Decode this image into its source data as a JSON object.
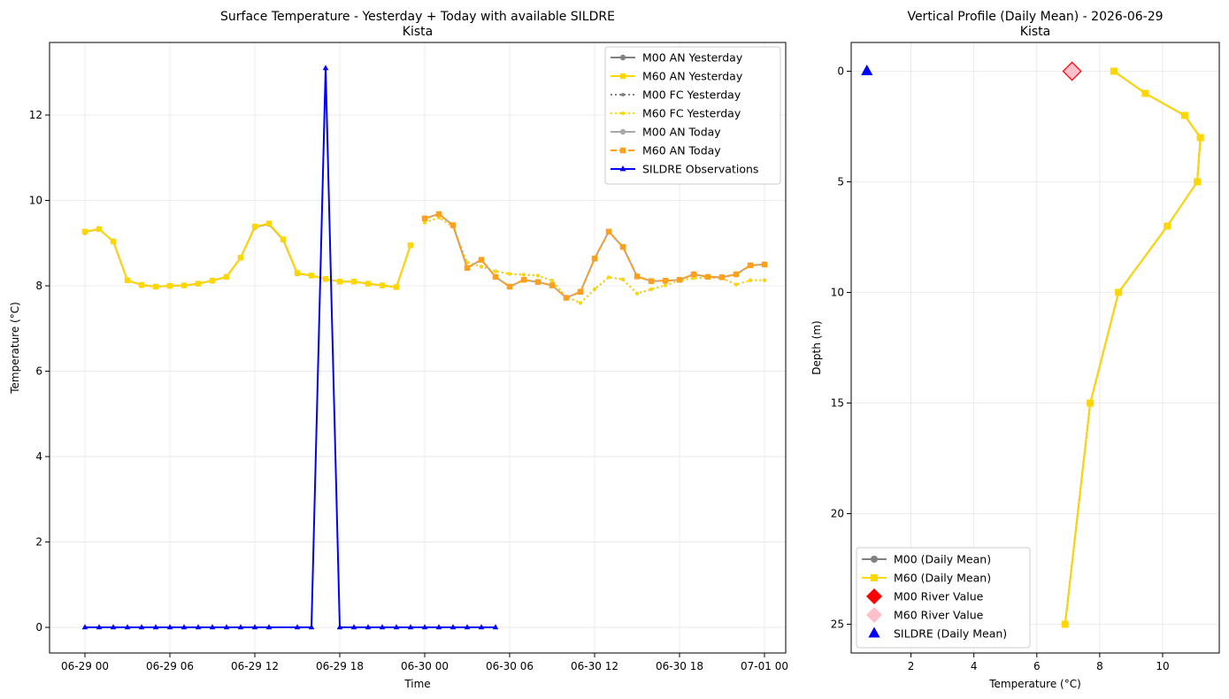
{
  "chart_data": [
    {
      "type": "line",
      "title": "Surface Temperature - Yesterday + Today with available SILDRE",
      "subtitle": "Kista",
      "xlabel": "Time",
      "ylabel": "Temperature (°C)",
      "x_unit": "hours since 06-29 00",
      "xlim": [
        -2.5,
        49.5
      ],
      "ylim": [
        -0.6,
        13.7
      ],
      "x_ticks": [
        0,
        6,
        12,
        18,
        24,
        30,
        36,
        42,
        48
      ],
      "x_tick_labels": [
        "06-29 00",
        "06-29 06",
        "06-29 12",
        "06-29 18",
        "06-30 00",
        "06-30 06",
        "06-30 12",
        "06-30 18",
        "07-01 00"
      ],
      "y_ticks": [
        0,
        2,
        4,
        6,
        8,
        10,
        12
      ],
      "y_tick_labels": [
        "0",
        "2",
        "4",
        "6",
        "8",
        "10",
        "12"
      ],
      "grid": true,
      "legend_position": "upper right",
      "series": [
        {
          "name": "M00 AN Yesterday",
          "color": "#808080",
          "dash": "solid",
          "marker": "circle",
          "x": [
            0,
            1,
            2,
            3,
            4,
            5,
            6,
            7,
            8,
            9,
            10,
            11,
            12,
            13,
            14,
            15,
            16,
            17,
            18,
            19,
            20,
            21,
            22,
            23
          ],
          "y": [
            9.26,
            9.33,
            9.04,
            8.13,
            8.02,
            7.98,
            8.0,
            8.01,
            8.05,
            8.12,
            8.21,
            8.66,
            9.38,
            9.45,
            9.08,
            8.29,
            8.24,
            8.16,
            8.1,
            8.1,
            8.05,
            8.01,
            7.97,
            8.95
          ]
        },
        {
          "name": "M60 AN Yesterday",
          "color": "#FFD700",
          "dash": "solid",
          "marker": "square",
          "x": [
            0,
            1,
            2,
            3,
            4,
            5,
            6,
            7,
            8,
            9,
            10,
            11,
            12,
            13,
            14,
            15,
            16,
            17,
            18,
            19,
            20,
            21,
            22,
            23
          ],
          "y": [
            9.27,
            9.33,
            9.04,
            8.13,
            8.02,
            7.98,
            8.0,
            8.01,
            8.05,
            8.12,
            8.21,
            8.66,
            9.39,
            9.46,
            9.09,
            8.3,
            8.24,
            8.16,
            8.1,
            8.1,
            8.05,
            8.01,
            7.97,
            8.95
          ]
        },
        {
          "name": "M00 FC Yesterday",
          "color": "#808080",
          "dash": "dot",
          "marker": "circle",
          "x": [
            24,
            25,
            26,
            27,
            28,
            29,
            30,
            31,
            32,
            33,
            34,
            35,
            36,
            37,
            38,
            39,
            40,
            41,
            42,
            43,
            44,
            45,
            46,
            47,
            48
          ],
          "y": [
            9.48,
            9.6,
            9.38,
            8.55,
            8.45,
            8.34,
            8.28,
            8.26,
            8.24,
            8.12,
            7.74,
            7.6,
            7.92,
            8.2,
            8.15,
            7.82,
            7.92,
            8.01,
            8.12,
            8.18,
            8.19,
            8.18,
            8.03,
            8.13,
            8.13
          ]
        },
        {
          "name": "M60 FC Yesterday",
          "color": "#FFD700",
          "dash": "dot",
          "marker": "circle",
          "x": [
            24,
            25,
            26,
            27,
            28,
            29,
            30,
            31,
            32,
            33,
            34,
            35,
            36,
            37,
            38,
            39,
            40,
            41,
            42,
            43,
            44,
            45,
            46,
            47,
            48
          ],
          "y": [
            9.48,
            9.6,
            9.38,
            8.55,
            8.45,
            8.34,
            8.28,
            8.26,
            8.24,
            8.12,
            7.74,
            7.6,
            7.92,
            8.2,
            8.15,
            7.82,
            7.92,
            8.01,
            8.12,
            8.18,
            8.19,
            8.18,
            8.03,
            8.13,
            8.13
          ]
        },
        {
          "name": "M00 AN Today",
          "color": "#A9A9A9",
          "dash": "solid",
          "marker": "circle",
          "x": [
            24,
            25,
            26,
            27,
            28,
            29,
            30,
            31,
            32,
            33,
            34,
            35,
            36,
            37,
            38,
            39,
            40,
            41,
            42,
            43,
            44,
            45,
            46,
            47,
            48
          ],
          "y": [
            9.58,
            9.68,
            9.42,
            8.42,
            8.61,
            8.21,
            7.98,
            8.14,
            8.09,
            8.01,
            7.72,
            7.86,
            8.64,
            9.27,
            8.91,
            8.22,
            8.11,
            8.12,
            8.14,
            8.27,
            8.21,
            8.2,
            8.27,
            8.48,
            8.5
          ]
        },
        {
          "name": "M60 AN Today",
          "color": "#FF9F1A",
          "dash": "dash",
          "marker": "square",
          "x": [
            24,
            25,
            26,
            27,
            28,
            29,
            30,
            31,
            32,
            33,
            34,
            35,
            36,
            37,
            38,
            39,
            40,
            41,
            42,
            43,
            44,
            45,
            46,
            47,
            48
          ],
          "y": [
            9.58,
            9.68,
            9.42,
            8.42,
            8.61,
            8.21,
            7.98,
            8.14,
            8.09,
            8.01,
            7.72,
            7.86,
            8.64,
            9.27,
            8.91,
            8.22,
            8.11,
            8.12,
            8.14,
            8.27,
            8.21,
            8.2,
            8.27,
            8.48,
            8.5
          ]
        },
        {
          "name": "SILDRE Observations",
          "color": "#0000FF",
          "dash": "solid",
          "marker": "triangle",
          "x": [
            0,
            1,
            2,
            3,
            4,
            5,
            6,
            7,
            8,
            9,
            10,
            11,
            12,
            13,
            15,
            16,
            17,
            18,
            19,
            20,
            21,
            22,
            23,
            24,
            25,
            26,
            27,
            28,
            29
          ],
          "y": [
            0,
            0,
            0,
            0,
            0,
            0,
            0,
            0,
            0,
            0,
            0,
            0,
            0,
            0,
            0,
            0,
            13.1,
            0,
            0,
            0,
            0,
            0,
            0,
            0,
            0,
            0,
            0,
            0,
            0
          ]
        }
      ]
    },
    {
      "type": "line",
      "title": "Vertical Profile (Daily Mean) - 2026-06-29",
      "subtitle": "Kista",
      "xlabel": "Temperature (°C)",
      "ylabel": "Depth (m)",
      "xlim": [
        0.1,
        11.8
      ],
      "ylim": [
        26.3,
        -1.3
      ],
      "y_inverted": true,
      "x_ticks": [
        2,
        4,
        6,
        8,
        10
      ],
      "x_tick_labels": [
        "2",
        "4",
        "6",
        "8",
        "10"
      ],
      "y_ticks": [
        0,
        5,
        10,
        15,
        20,
        25
      ],
      "y_tick_labels": [
        "0",
        "5",
        "10",
        "15",
        "20",
        "25"
      ],
      "grid": true,
      "legend_position": "lower left",
      "series": [
        {
          "name": "M00 (Daily Mean)",
          "color": "#808080",
          "marker": "circle",
          "temperature": [
            8.45,
            9.45,
            10.7,
            11.2,
            11.1,
            10.15,
            8.6,
            7.7,
            6.9
          ],
          "depth": [
            0,
            1,
            2,
            3,
            5,
            7,
            10,
            15,
            25
          ]
        },
        {
          "name": "M60 (Daily Mean)",
          "color": "#FFD700",
          "marker": "square",
          "temperature": [
            8.45,
            9.45,
            10.7,
            11.2,
            11.1,
            10.15,
            8.6,
            7.7,
            6.9
          ],
          "depth": [
            0,
            1,
            2,
            3,
            5,
            7,
            10,
            15,
            25
          ]
        },
        {
          "name": "M00 River Value",
          "color": "#FF0000",
          "marker": "diamond",
          "temperature": [
            7.12
          ],
          "depth": [
            0
          ]
        },
        {
          "name": "M60 River Value",
          "color": "#FFC0CB",
          "marker": "diamond",
          "temperature": [
            7.12
          ],
          "depth": [
            0
          ]
        },
        {
          "name": "SILDRE (Daily Mean)",
          "color": "#0000FF",
          "marker": "triangle",
          "temperature": [
            0.6
          ],
          "depth": [
            0
          ]
        }
      ]
    }
  ]
}
